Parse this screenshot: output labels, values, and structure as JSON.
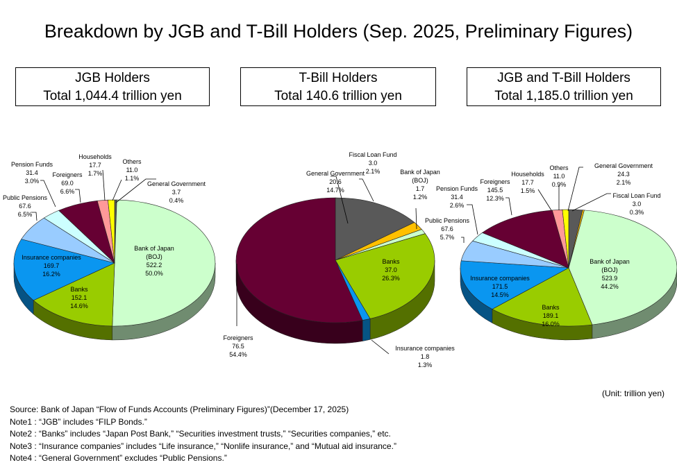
{
  "title": "Breakdown by JGB and T-Bill Holders (Sep. 2025, Preliminary Figures)",
  "unit": "(Unit: trillion yen)",
  "notes": [
    "Source: Bank of Japan “Flow of Funds Accounts (Preliminary Figures)”(December 17, 2025)",
    "Note1 : “JGB” includes “FILP Bonds.”",
    "Note2 : “Banks” includes “Japan Post Bank,” “Securities investment trusts,” “Securities companies,” etc.",
    "Note3 : “Insurance companies” includes “Life insurance,” “Nonlife insurance,” and “Mutual aid insurance.”",
    "Note4 : “General Government” excludes “Public Pensions.”"
  ],
  "colors": {
    "Bank of Japan": "#ccffcc",
    "Banks": "#99cc00",
    "Insurance companies": "#0a96f0",
    "Public Pensions": "#99ccff",
    "Pension Funds": "#ccffff",
    "Foreigners": "#660033",
    "Households": "#ff9999",
    "Others": "#ffff00",
    "General Government": "#595959",
    "Fiscal Loan Fund": "#ffc000"
  },
  "chart_data": [
    {
      "type": "pie",
      "title": "JGB Holders",
      "subtitle": "Total 1,044.4 trillion yen",
      "slices": [
        {
          "label": "General Government",
          "value": 3.7,
          "pct": "0.4%"
        },
        {
          "label": "Bank of Japan",
          "sublabel": "(BOJ)",
          "value": 522.2,
          "pct": "50.0%"
        },
        {
          "label": "Banks",
          "value": 152.1,
          "pct": "14.6%"
        },
        {
          "label": "Insurance companies",
          "value": 169.7,
          "pct": "16.2%"
        },
        {
          "label": "Public Pensions",
          "value": 67.6,
          "pct": "6.5%"
        },
        {
          "label": "Pension Funds",
          "value": 31.4,
          "pct": "3.0%"
        },
        {
          "label": "Foreigners",
          "value": 69.0,
          "pct": "6.6%"
        },
        {
          "label": "Households",
          "value": 17.7,
          "pct": "1.7%"
        },
        {
          "label": "Others",
          "value": 11.0,
          "pct": "1.1%"
        }
      ]
    },
    {
      "type": "pie",
      "title": "T-Bill Holders",
      "subtitle": "Total 140.6 trillion yen",
      "slices": [
        {
          "label": "General Government",
          "value": 20.6,
          "pct": "14.7%"
        },
        {
          "label": "Fiscal Loan Fund",
          "value": 3.0,
          "pct": "2.1%"
        },
        {
          "label": "Bank of Japan",
          "sublabel": "(BOJ)",
          "value": 1.7,
          "pct": "1.2%"
        },
        {
          "label": "Banks",
          "value": 37.0,
          "pct": "26.3%"
        },
        {
          "label": "Insurance companies",
          "value": 1.8,
          "pct": "1.3%"
        },
        {
          "label": "Foreigners",
          "value": 76.5,
          "pct": "54.4%"
        }
      ]
    },
    {
      "type": "pie",
      "title": "JGB and T-Bill Holders",
      "subtitle": "Total 1,185.0 trillion yen",
      "slices": [
        {
          "label": "General Government",
          "value": 24.3,
          "pct": "2.1%"
        },
        {
          "label": "Fiscal Loan Fund",
          "value": 3.0,
          "pct": "0.3%"
        },
        {
          "label": "Bank of Japan",
          "sublabel": "(BOJ)",
          "value": 523.9,
          "pct": "44.2%"
        },
        {
          "label": "Banks",
          "value": 189.1,
          "pct": "16.0%"
        },
        {
          "label": "Insurance companies",
          "value": 171.5,
          "pct": "14.5%"
        },
        {
          "label": "Public Pensions",
          "value": 67.6,
          "pct": "5.7%"
        },
        {
          "label": "Pension Funds",
          "value": 31.4,
          "pct": "2.6%"
        },
        {
          "label": "Foreigners",
          "value": 145.5,
          "pct": "12.3%"
        },
        {
          "label": "Households",
          "value": 17.7,
          "pct": "1.5%"
        },
        {
          "label": "Others",
          "value": 11.0,
          "pct": "0.9%"
        }
      ]
    }
  ]
}
